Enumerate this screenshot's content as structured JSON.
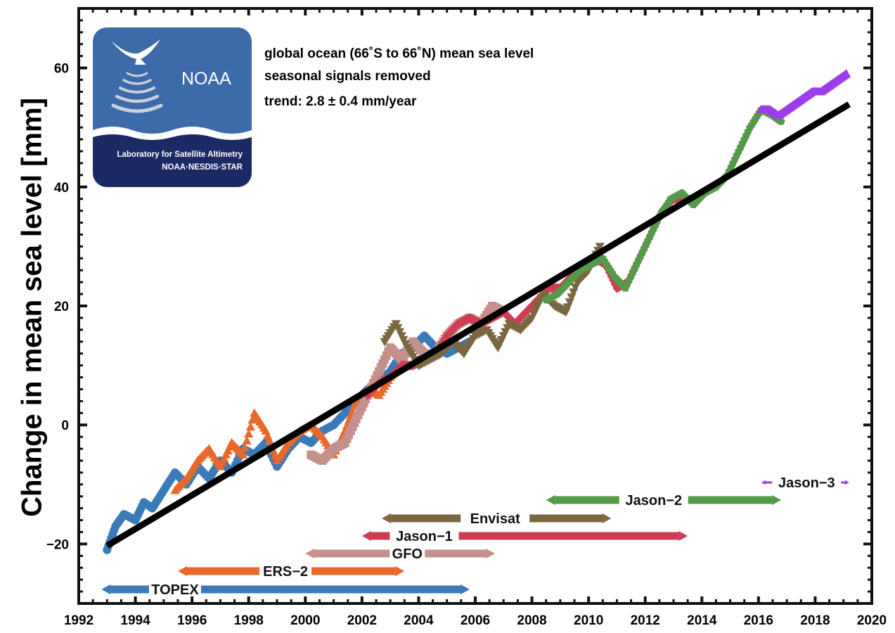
{
  "chart_data": {
    "type": "scatter",
    "ylabel": "Change in mean sea level [mm]",
    "xlabel": "",
    "xlim": [
      1992,
      2020
    ],
    "ylim": [
      -30,
      70
    ],
    "xticks": [
      1992,
      1994,
      1996,
      1998,
      2000,
      2002,
      2004,
      2006,
      2008,
      2010,
      2012,
      2014,
      2016,
      2018,
      2020
    ],
    "yticks": [
      -20,
      0,
      20,
      40,
      60
    ],
    "grid": false,
    "annotations": [
      "global ocean (66˚S to 66˚N) mean sea level",
      "seasonal signals removed",
      "trend:  2.8 ± 0.4 mm/year"
    ],
    "trend": {
      "label": "trend",
      "slope_mm_per_year": 2.8,
      "uncertainty": 0.4,
      "x": [
        1993.0,
        2019.2
      ],
      "y": [
        -20.3,
        53.9
      ]
    },
    "series": [
      {
        "name": "TOPEX",
        "marker": "circle",
        "color": "#3a7ab8",
        "x": [
          1993.0,
          1993.3,
          1993.6,
          1994.0,
          1994.3,
          1994.6,
          1995.0,
          1995.4,
          1995.8,
          1996.2,
          1996.6,
          1997.0,
          1997.4,
          1997.8,
          1998.2,
          1998.6,
          1999.0,
          1999.4,
          1999.8,
          2000.2,
          2000.6,
          2001.0,
          2001.4,
          2001.8,
          2002.2,
          2002.6,
          2003.0,
          2003.4,
          2003.8,
          2004.2,
          2004.6,
          2005.0,
          2005.4,
          2005.8
        ],
        "y": [
          -21,
          -17,
          -15,
          -16,
          -13,
          -14,
          -11,
          -8,
          -10,
          -7,
          -9,
          -6,
          -8,
          -4,
          -5,
          -3,
          -7,
          -4,
          -2,
          -3,
          -1,
          0,
          2,
          4,
          6,
          7,
          9,
          12,
          13,
          15,
          13,
          12,
          13,
          14
        ]
      },
      {
        "name": "ERS-2",
        "marker": "triangle-up",
        "color": "#e8692a",
        "x": [
          1995.4,
          1995.8,
          1996.2,
          1996.6,
          1997.0,
          1997.4,
          1997.8,
          1998.2,
          1998.6,
          1999.0,
          1999.4,
          1999.8,
          2000.2,
          2000.6,
          2001.0,
          2001.4,
          2001.8,
          2002.2,
          2002.6,
          2003.0,
          2003.4
        ],
        "y": [
          -11,
          -9,
          -6,
          -4,
          -7,
          -3,
          -5,
          2,
          -1,
          -6,
          -3,
          -1,
          0,
          -2,
          -5,
          -1,
          4,
          6,
          5,
          8,
          10
        ]
      },
      {
        "name": "GFO",
        "marker": "square",
        "color": "#c4908c",
        "x": [
          2000.2,
          2000.6,
          2001.0,
          2001.4,
          2001.8,
          2002.2,
          2002.6,
          2003.0,
          2003.4,
          2003.8,
          2004.2,
          2004.6,
          2005.0,
          2005.4,
          2005.8,
          2006.2,
          2006.6,
          2007.0
        ],
        "y": [
          -5,
          -6,
          -4,
          -3,
          1,
          5,
          9,
          13,
          11,
          14,
          12,
          12,
          15,
          17,
          18,
          17,
          20,
          19
        ]
      },
      {
        "name": "Jason-1",
        "marker": "diamond",
        "color": "#cf3d55",
        "x": [
          2002.2,
          2002.6,
          2003.0,
          2003.4,
          2003.8,
          2004.2,
          2004.6,
          2005.0,
          2005.4,
          2005.8,
          2006.2,
          2006.6,
          2007.0,
          2007.4,
          2007.8,
          2008.2,
          2008.6,
          2009.0,
          2009.4,
          2009.8,
          2010.2,
          2010.6,
          2011.0,
          2011.4,
          2011.8,
          2012.2,
          2012.6,
          2013.0,
          2013.4
        ],
        "y": [
          5,
          7,
          8,
          10,
          10,
          11,
          12,
          15,
          17,
          18,
          17,
          18,
          19,
          17,
          19,
          21,
          23,
          23,
          25,
          27,
          28,
          27,
          23,
          24,
          28,
          32,
          36,
          38,
          38
        ]
      },
      {
        "name": "Envisat",
        "marker": "triangle-down",
        "color": "#7a6740",
        "x": [
          2002.8,
          2003.2,
          2003.6,
          2004.0,
          2004.4,
          2004.8,
          2005.2,
          2005.6,
          2006.0,
          2006.4,
          2006.8,
          2007.2,
          2007.6,
          2008.0,
          2008.4,
          2008.8,
          2009.2,
          2009.6,
          2010.0,
          2010.4
        ],
        "y": [
          14,
          17,
          13,
          10,
          11,
          12,
          14,
          12,
          15,
          16,
          13,
          17,
          16,
          18,
          22,
          20,
          19,
          24,
          26,
          30
        ]
      },
      {
        "name": "Jason-2",
        "marker": "pentagon",
        "color": "#57994a",
        "x": [
          2008.5,
          2008.9,
          2009.3,
          2009.7,
          2010.1,
          2010.5,
          2010.9,
          2011.3,
          2011.7,
          2012.1,
          2012.5,
          2012.9,
          2013.3,
          2013.7,
          2014.1,
          2014.5,
          2014.9,
          2015.3,
          2015.7,
          2016.1,
          2016.5,
          2016.8
        ],
        "y": [
          21,
          22,
          24,
          26,
          27,
          28,
          25,
          23,
          27,
          31,
          35,
          38,
          39,
          37,
          39,
          40,
          42,
          46,
          50,
          53,
          52,
          51
        ]
      },
      {
        "name": "Jason-3",
        "marker": "triangle-up",
        "color": "#9b3dea",
        "x": [
          2016.1,
          2016.4,
          2016.7,
          2017.0,
          2017.3,
          2017.6,
          2017.9,
          2018.2,
          2018.5,
          2018.8,
          2019.1
        ],
        "y": [
          53,
          53,
          52,
          53,
          54,
          55,
          56,
          56,
          57,
          58,
          59
        ]
      }
    ],
    "mission_spans": [
      {
        "name": "TOPEX",
        "start": 1992.8,
        "end": 2005.8,
        "color": "#3a7ab8"
      },
      {
        "name": "ERS-2",
        "start": 1995.5,
        "end": 2003.5,
        "color": "#e8692a"
      },
      {
        "name": "GFO",
        "start": 2000.0,
        "end": 2006.7,
        "color": "#c4908c"
      },
      {
        "name": "Jason-1",
        "start": 2002.0,
        "end": 2013.5,
        "color": "#cf3d55"
      },
      {
        "name": "Envisat",
        "start": 2002.7,
        "end": 2010.8,
        "color": "#7a6740"
      },
      {
        "name": "Jason-2",
        "start": 2008.5,
        "end": 2016.8,
        "color": "#57994a"
      },
      {
        "name": "Jason-3",
        "start": 2016.1,
        "end": 2019.2,
        "color": "#9b3dea"
      }
    ]
  },
  "logo": {
    "name": "NOAA",
    "line1": "Laboratory for Satellite Altimetry",
    "line2": "NOAA·NESDIS·STAR"
  }
}
